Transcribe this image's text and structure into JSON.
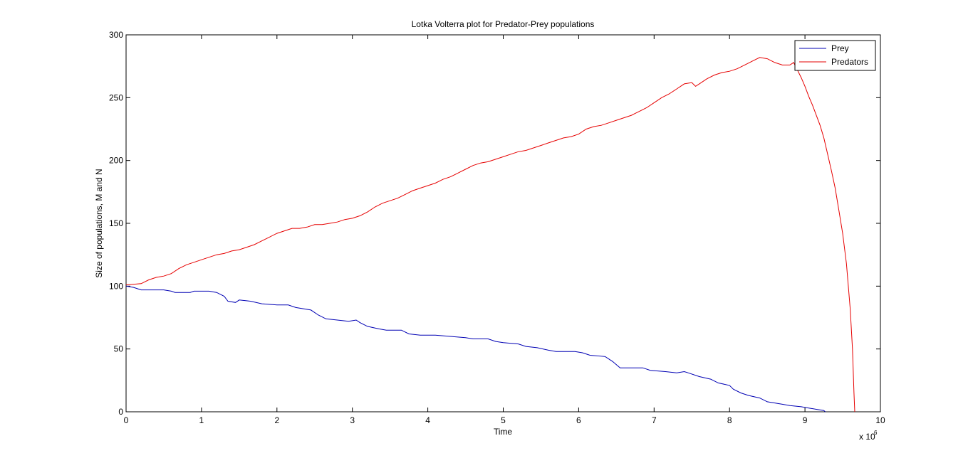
{
  "chart_data": {
    "type": "line",
    "title": "Lotka Volterra plot for Predator-Prey populations",
    "xlabel": "Time",
    "ylabel": "Size of populations, M and N",
    "x_exponent_base": "x 10",
    "x_exponent_power": "6",
    "xlim": [
      0,
      10
    ],
    "ylim": [
      0,
      300
    ],
    "xticks": [
      0,
      1,
      2,
      3,
      4,
      5,
      6,
      7,
      8,
      9,
      10
    ],
    "yticks": [
      0,
      50,
      100,
      150,
      200,
      250,
      300
    ],
    "grid": false,
    "legend_position": "top-right",
    "series": [
      {
        "name": "Prey",
        "color": "#0000b4",
        "points": [
          [
            0,
            100
          ],
          [
            0.1,
            99
          ],
          [
            0.2,
            97
          ],
          [
            0.5,
            97
          ],
          [
            0.6,
            96
          ],
          [
            0.65,
            95
          ],
          [
            0.85,
            95
          ],
          [
            0.9,
            96
          ],
          [
            1.1,
            96
          ],
          [
            1.2,
            95
          ],
          [
            1.3,
            92
          ],
          [
            1.35,
            88
          ],
          [
            1.45,
            87
          ],
          [
            1.5,
            89
          ],
          [
            1.65,
            88
          ],
          [
            1.8,
            86
          ],
          [
            2.0,
            85
          ],
          [
            2.15,
            85
          ],
          [
            2.25,
            83
          ],
          [
            2.35,
            82
          ],
          [
            2.45,
            81
          ],
          [
            2.55,
            77
          ],
          [
            2.65,
            74
          ],
          [
            2.8,
            73
          ],
          [
            2.95,
            72
          ],
          [
            3.05,
            73
          ],
          [
            3.1,
            71
          ],
          [
            3.2,
            68
          ],
          [
            3.35,
            66
          ],
          [
            3.45,
            65
          ],
          [
            3.65,
            65
          ],
          [
            3.75,
            62
          ],
          [
            3.9,
            61
          ],
          [
            4.1,
            61
          ],
          [
            4.3,
            60
          ],
          [
            4.5,
            59
          ],
          [
            4.6,
            58
          ],
          [
            4.8,
            58
          ],
          [
            4.9,
            56
          ],
          [
            5.0,
            55
          ],
          [
            5.2,
            54
          ],
          [
            5.3,
            52
          ],
          [
            5.45,
            51
          ],
          [
            5.6,
            49
          ],
          [
            5.7,
            48
          ],
          [
            5.95,
            48
          ],
          [
            6.05,
            47
          ],
          [
            6.15,
            45
          ],
          [
            6.35,
            44
          ],
          [
            6.45,
            40
          ],
          [
            6.55,
            35
          ],
          [
            6.85,
            35
          ],
          [
            6.95,
            33
          ],
          [
            7.15,
            32
          ],
          [
            7.3,
            31
          ],
          [
            7.4,
            32
          ],
          [
            7.45,
            31
          ],
          [
            7.6,
            28
          ],
          [
            7.75,
            26
          ],
          [
            7.85,
            23
          ],
          [
            8.0,
            21
          ],
          [
            8.05,
            18
          ],
          [
            8.15,
            15
          ],
          [
            8.25,
            13
          ],
          [
            8.4,
            11
          ],
          [
            8.5,
            8
          ],
          [
            8.6,
            7
          ],
          [
            8.7,
            6
          ],
          [
            8.8,
            5
          ],
          [
            8.95,
            4
          ],
          [
            9.05,
            3
          ],
          [
            9.15,
            2
          ],
          [
            9.25,
            1
          ],
          [
            9.27,
            0
          ]
        ]
      },
      {
        "name": "Predators",
        "color": "#e60000",
        "points": [
          [
            0,
            101
          ],
          [
            0.2,
            102
          ],
          [
            0.3,
            105
          ],
          [
            0.4,
            107
          ],
          [
            0.5,
            108
          ],
          [
            0.6,
            110
          ],
          [
            0.7,
            114
          ],
          [
            0.8,
            117
          ],
          [
            0.9,
            119
          ],
          [
            1.0,
            121
          ],
          [
            1.1,
            123
          ],
          [
            1.2,
            125
          ],
          [
            1.3,
            126
          ],
          [
            1.4,
            128
          ],
          [
            1.5,
            129
          ],
          [
            1.6,
            131
          ],
          [
            1.7,
            133
          ],
          [
            1.8,
            136
          ],
          [
            1.9,
            139
          ],
          [
            2.0,
            142
          ],
          [
            2.1,
            144
          ],
          [
            2.2,
            146
          ],
          [
            2.3,
            146
          ],
          [
            2.4,
            147
          ],
          [
            2.5,
            149
          ],
          [
            2.6,
            149
          ],
          [
            2.7,
            150
          ],
          [
            2.8,
            151
          ],
          [
            2.9,
            153
          ],
          [
            3.0,
            154
          ],
          [
            3.1,
            156
          ],
          [
            3.2,
            159
          ],
          [
            3.3,
            163
          ],
          [
            3.4,
            166
          ],
          [
            3.5,
            168
          ],
          [
            3.6,
            170
          ],
          [
            3.7,
            173
          ],
          [
            3.8,
            176
          ],
          [
            3.9,
            178
          ],
          [
            4.0,
            180
          ],
          [
            4.1,
            182
          ],
          [
            4.2,
            185
          ],
          [
            4.3,
            187
          ],
          [
            4.4,
            190
          ],
          [
            4.5,
            193
          ],
          [
            4.6,
            196
          ],
          [
            4.7,
            198
          ],
          [
            4.8,
            199
          ],
          [
            4.9,
            201
          ],
          [
            5.0,
            203
          ],
          [
            5.1,
            205
          ],
          [
            5.2,
            207
          ],
          [
            5.3,
            208
          ],
          [
            5.4,
            210
          ],
          [
            5.5,
            212
          ],
          [
            5.6,
            214
          ],
          [
            5.7,
            216
          ],
          [
            5.8,
            218
          ],
          [
            5.9,
            219
          ],
          [
            6.0,
            221
          ],
          [
            6.1,
            225
          ],
          [
            6.2,
            227
          ],
          [
            6.3,
            228
          ],
          [
            6.4,
            230
          ],
          [
            6.5,
            232
          ],
          [
            6.6,
            234
          ],
          [
            6.7,
            236
          ],
          [
            6.8,
            239
          ],
          [
            6.9,
            242
          ],
          [
            7.0,
            246
          ],
          [
            7.1,
            250
          ],
          [
            7.2,
            253
          ],
          [
            7.3,
            257
          ],
          [
            7.4,
            261
          ],
          [
            7.5,
            262
          ],
          [
            7.55,
            259
          ],
          [
            7.6,
            261
          ],
          [
            7.7,
            265
          ],
          [
            7.8,
            268
          ],
          [
            7.9,
            270
          ],
          [
            8.0,
            271
          ],
          [
            8.1,
            273
          ],
          [
            8.2,
            276
          ],
          [
            8.3,
            279
          ],
          [
            8.4,
            282
          ],
          [
            8.5,
            281
          ],
          [
            8.6,
            278
          ],
          [
            8.7,
            276
          ],
          [
            8.8,
            276
          ],
          [
            8.85,
            278
          ],
          [
            8.9,
            272
          ],
          [
            8.95,
            266
          ],
          [
            9.0,
            259
          ],
          [
            9.05,
            251
          ],
          [
            9.1,
            244
          ],
          [
            9.15,
            236
          ],
          [
            9.2,
            228
          ],
          [
            9.25,
            218
          ],
          [
            9.3,
            205
          ],
          [
            9.35,
            192
          ],
          [
            9.4,
            178
          ],
          [
            9.45,
            160
          ],
          [
            9.5,
            142
          ],
          [
            9.55,
            118
          ],
          [
            9.6,
            82
          ],
          [
            9.63,
            50
          ],
          [
            9.65,
            15
          ],
          [
            9.66,
            0
          ]
        ]
      }
    ]
  }
}
